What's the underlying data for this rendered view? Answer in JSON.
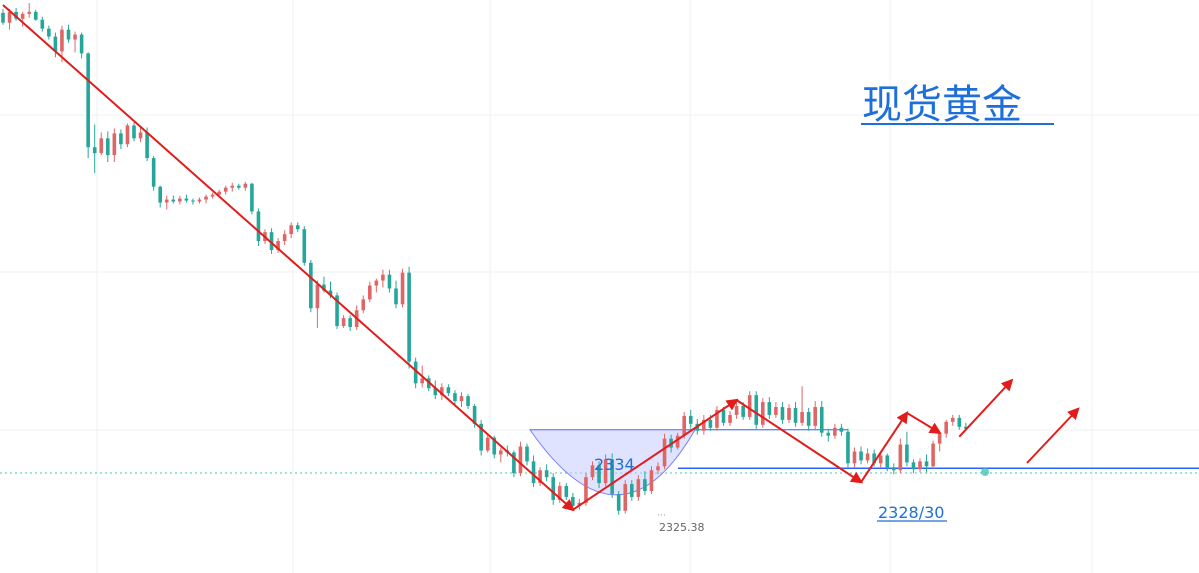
{
  "title": "现货黄金",
  "colors": {
    "up": "#e06666",
    "down": "#26a69a",
    "trend_arrow": "#e31b1b",
    "level_line": "#2962ff",
    "title": "#1e6fd9",
    "bowl_fill": "#c7ccff",
    "bowl_stroke": "#7b7ff0",
    "grid": "#eef0f3",
    "dotted_price": "#45c4b0"
  },
  "chart_data": {
    "type": "candlestick",
    "title": "现货黄金",
    "ylim": [
      2319.5,
      2377.5
    ],
    "grid": true,
    "annotations": {
      "level_2334": "2334",
      "level_2328_30": "2328/30",
      "low_2325_38": "2325.38"
    },
    "levels": [
      {
        "label": "2334",
        "value": 2334.0
      },
      {
        "label": "2328/30",
        "value": 2330.1
      }
    ],
    "low_marker": {
      "label": "2325.38",
      "value": 2325.38
    },
    "arrows": [
      {
        "from": [
          0,
          2377
        ],
        "to": [
          87,
          2325.9
        ]
      },
      {
        "from": [
          87,
          2325.9
        ],
        "to": [
          112,
          2337.0
        ]
      },
      {
        "from": [
          112,
          2337.0
        ],
        "to": [
          131,
          2328.7
        ]
      },
      {
        "from": [
          131,
          2328.7
        ],
        "to": [
          138,
          2335.7
        ]
      },
      {
        "from": [
          138,
          2335.7
        ],
        "to": [
          143,
          2333.7
        ]
      },
      {
        "from": [
          146,
          2333.3
        ],
        "to": [
          154,
          2339.0
        ]
      }
    ],
    "ohlc": [
      [
        2376.2,
        2376.6,
        2375.0,
        2375.2
      ],
      [
        2375.2,
        2376.6,
        2374.5,
        2376.3
      ],
      [
        2376.3,
        2376.7,
        2375.4,
        2375.6
      ],
      [
        2375.6,
        2376.3,
        2374.8,
        2376.1
      ],
      [
        2376.1,
        2377.2,
        2375.7,
        2376.3
      ],
      [
        2376.3,
        2376.5,
        2375.4,
        2375.5
      ],
      [
        2375.5,
        2375.8,
        2374.3,
        2374.6
      ],
      [
        2374.6,
        2374.9,
        2373.5,
        2373.8
      ],
      [
        2373.8,
        2374.2,
        2371.7,
        2372.3
      ],
      [
        2372.3,
        2374.9,
        2371.2,
        2374.5
      ],
      [
        2374.5,
        2375.0,
        2373.2,
        2373.5
      ],
      [
        2373.5,
        2374.3,
        2372.2,
        2374.0
      ],
      [
        2374.0,
        2374.2,
        2371.6,
        2372.1
      ],
      [
        2372.1,
        2372.2,
        2361.5,
        2362.6
      ],
      [
        2362.6,
        2364.9,
        2360.0,
        2362.0
      ],
      [
        2362.0,
        2364.1,
        2361.8,
        2363.5
      ],
      [
        2363.5,
        2364.2,
        2361.1,
        2361.8
      ],
      [
        2361.8,
        2364.5,
        2361.1,
        2364.0
      ],
      [
        2364.0,
        2364.4,
        2362.4,
        2362.9
      ],
      [
        2362.9,
        2365.0,
        2362.6,
        2364.8
      ],
      [
        2364.8,
        2365.1,
        2363.2,
        2363.5
      ],
      [
        2363.5,
        2364.7,
        2363.1,
        2364.1
      ],
      [
        2364.1,
        2364.6,
        2361.2,
        2361.5
      ],
      [
        2361.5,
        2361.7,
        2358.2,
        2358.6
      ],
      [
        2358.6,
        2358.7,
        2356.5,
        2357.0
      ],
      [
        2357.0,
        2357.7,
        2356.3,
        2357.3
      ],
      [
        2357.3,
        2357.7,
        2356.9,
        2357.1
      ],
      [
        2357.1,
        2357.7,
        2356.8,
        2357.4
      ],
      [
        2357.4,
        2357.8,
        2357.0,
        2357.2
      ],
      [
        2357.2,
        2357.4,
        2356.8,
        2357.1
      ],
      [
        2357.1,
        2357.5,
        2356.9,
        2357.3
      ],
      [
        2357.3,
        2357.8,
        2356.9,
        2357.6
      ],
      [
        2357.6,
        2358.0,
        2357.4,
        2357.8
      ],
      [
        2357.8,
        2358.3,
        2357.6,
        2358.1
      ],
      [
        2358.1,
        2358.7,
        2357.8,
        2358.5
      ],
      [
        2358.5,
        2359.0,
        2358.1,
        2358.7
      ],
      [
        2358.7,
        2358.9,
        2358.3,
        2358.5
      ],
      [
        2358.5,
        2359.1,
        2358.2,
        2358.9
      ],
      [
        2358.9,
        2359.0,
        2355.8,
        2356.1
      ],
      [
        2356.1,
        2356.4,
        2352.6,
        2353.1
      ],
      [
        2353.1,
        2354.3,
        2352.8,
        2354.0
      ],
      [
        2354.0,
        2354.4,
        2351.8,
        2352.2
      ],
      [
        2352.2,
        2353.4,
        2351.9,
        2353.1
      ],
      [
        2353.1,
        2354.2,
        2352.7,
        2353.8
      ],
      [
        2353.8,
        2355.0,
        2353.4,
        2354.7
      ],
      [
        2354.7,
        2355.0,
        2354.0,
        2354.3
      ],
      [
        2354.3,
        2354.6,
        2350.6,
        2350.9
      ],
      [
        2350.9,
        2351.2,
        2345.9,
        2346.3
      ],
      [
        2346.3,
        2349.1,
        2344.3,
        2348.7
      ],
      [
        2348.7,
        2349.5,
        2347.9,
        2348.1
      ],
      [
        2348.1,
        2349.0,
        2347.3,
        2347.6
      ],
      [
        2347.6,
        2347.9,
        2344.2,
        2344.5
      ],
      [
        2344.5,
        2345.6,
        2344.3,
        2345.3
      ],
      [
        2345.3,
        2345.6,
        2344.0,
        2344.4
      ],
      [
        2344.4,
        2346.6,
        2344.1,
        2346.1
      ],
      [
        2346.1,
        2347.6,
        2345.8,
        2347.2
      ],
      [
        2347.2,
        2349.0,
        2346.9,
        2348.6
      ],
      [
        2348.6,
        2349.3,
        2347.9,
        2349.1
      ],
      [
        2349.1,
        2350.2,
        2348.4,
        2349.7
      ],
      [
        2349.7,
        2350.2,
        2347.9,
        2348.3
      ],
      [
        2348.3,
        2349.1,
        2346.3,
        2346.7
      ],
      [
        2346.7,
        2350.3,
        2346.4,
        2349.9
      ],
      [
        2349.9,
        2350.5,
        2340.2,
        2340.9
      ],
      [
        2340.9,
        2341.3,
        2338.2,
        2338.7
      ],
      [
        2338.7,
        2340.5,
        2338.3,
        2339.2
      ],
      [
        2339.2,
        2339.5,
        2337.9,
        2338.2
      ],
      [
        2338.2,
        2339.0,
        2337.1,
        2337.5
      ],
      [
        2337.5,
        2338.7,
        2337.0,
        2338.3
      ],
      [
        2338.3,
        2338.6,
        2337.4,
        2337.7
      ],
      [
        2337.7,
        2338.0,
        2336.5,
        2336.9
      ],
      [
        2336.9,
        2337.8,
        2336.3,
        2337.4
      ],
      [
        2337.4,
        2337.6,
        2336.1,
        2336.4
      ],
      [
        2336.4,
        2336.6,
        2334.2,
        2334.6
      ],
      [
        2334.6,
        2335.0,
        2331.4,
        2331.9
      ],
      [
        2331.9,
        2333.5,
        2331.7,
        2333.2
      ],
      [
        2333.2,
        2333.4,
        2331.1,
        2331.5
      ],
      [
        2331.5,
        2332.2,
        2330.7,
        2331.9
      ],
      [
        2331.9,
        2332.4,
        2331.3,
        2331.7
      ],
      [
        2331.7,
        2331.9,
        2329.2,
        2329.6
      ],
      [
        2329.6,
        2332.8,
        2329.3,
        2332.3
      ],
      [
        2332.3,
        2332.6,
        2330.4,
        2330.8
      ],
      [
        2330.8,
        2331.4,
        2328.2,
        2328.6
      ],
      [
        2328.6,
        2330.2,
        2328.3,
        2329.9
      ],
      [
        2329.9,
        2330.5,
        2328.8,
        2329.2
      ],
      [
        2329.2,
        2329.6,
        2326.4,
        2326.9
      ],
      [
        2326.9,
        2328.7,
        2326.6,
        2328.3
      ],
      [
        2328.3,
        2328.6,
        2326.9,
        2327.2
      ],
      [
        2327.2,
        2327.6,
        2325.9,
        2326.3
      ],
      [
        2326.3,
        2327.0,
        2325.9,
        2326.6
      ],
      [
        2326.6,
        2329.6,
        2326.3,
        2329.2
      ],
      [
        2329.2,
        2330.8,
        2328.9,
        2330.4
      ],
      [
        2330.4,
        2330.8,
        2328.1,
        2328.6
      ],
      [
        2328.6,
        2331.5,
        2328.3,
        2331.0
      ],
      [
        2331.0,
        2331.6,
        2327.1,
        2327.5
      ],
      [
        2327.5,
        2327.8,
        2325.4,
        2325.8
      ],
      [
        2325.8,
        2328.9,
        2325.5,
        2328.5
      ],
      [
        2328.5,
        2328.9,
        2326.8,
        2327.2
      ],
      [
        2327.2,
        2329.4,
        2326.8,
        2329.0
      ],
      [
        2329.0,
        2329.8,
        2327.4,
        2327.8
      ],
      [
        2327.8,
        2330.3,
        2327.5,
        2329.9
      ],
      [
        2329.9,
        2330.7,
        2329.5,
        2330.3
      ],
      [
        2330.3,
        2333.6,
        2330.0,
        2333.1
      ],
      [
        2333.1,
        2333.5,
        2331.7,
        2332.2
      ],
      [
        2332.2,
        2333.7,
        2332.0,
        2333.4
      ],
      [
        2333.4,
        2335.8,
        2333.1,
        2335.4
      ],
      [
        2335.4,
        2336.0,
        2334.1,
        2334.6
      ],
      [
        2334.6,
        2335.1,
        2333.5,
        2333.9
      ],
      [
        2333.9,
        2335.5,
        2333.5,
        2335.0
      ],
      [
        2335.0,
        2335.5,
        2333.9,
        2334.2
      ],
      [
        2334.2,
        2336.4,
        2333.9,
        2336.0
      ],
      [
        2336.0,
        2336.3,
        2334.4,
        2334.7
      ],
      [
        2334.7,
        2335.9,
        2334.4,
        2335.5
      ],
      [
        2335.5,
        2336.9,
        2335.1,
        2336.4
      ],
      [
        2336.4,
        2336.8,
        2335.0,
        2335.3
      ],
      [
        2335.3,
        2337.9,
        2335.0,
        2337.5
      ],
      [
        2337.5,
        2337.9,
        2334.1,
        2334.5
      ],
      [
        2334.5,
        2337.2,
        2334.2,
        2336.8
      ],
      [
        2336.8,
        2337.3,
        2335.1,
        2335.5
      ],
      [
        2335.5,
        2336.8,
        2335.2,
        2336.3
      ],
      [
        2336.3,
        2336.8,
        2334.6,
        2335.0
      ],
      [
        2335.0,
        2336.6,
        2334.7,
        2336.2
      ],
      [
        2336.2,
        2336.8,
        2334.3,
        2334.7
      ],
      [
        2334.7,
        2338.4,
        2334.4,
        2335.8
      ],
      [
        2335.8,
        2336.2,
        2333.9,
        2334.4
      ],
      [
        2334.4,
        2336.9,
        2334.0,
        2336.3
      ],
      [
        2336.3,
        2336.9,
        2333.3,
        2333.7
      ],
      [
        2333.7,
        2334.1,
        2332.8,
        2333.4
      ],
      [
        2333.4,
        2334.6,
        2333.1,
        2334.2
      ],
      [
        2334.2,
        2334.6,
        2333.4,
        2333.8
      ],
      [
        2333.8,
        2334.1,
        2330.2,
        2330.6
      ],
      [
        2330.6,
        2332.2,
        2330.2,
        2331.8
      ],
      [
        2331.8,
        2332.3,
        2330.5,
        2330.9
      ],
      [
        2330.9,
        2332.1,
        2330.6,
        2331.6
      ],
      [
        2331.6,
        2332.0,
        2330.3,
        2330.6
      ],
      [
        2330.6,
        2331.8,
        2330.2,
        2331.4
      ],
      [
        2331.4,
        2331.6,
        2329.8,
        2330.2
      ],
      [
        2330.2,
        2330.6,
        2329.5,
        2329.9
      ],
      [
        2329.9,
        2333.1,
        2329.6,
        2332.5
      ],
      [
        2332.5,
        2333.8,
        2330.3,
        2330.7
      ],
      [
        2330.7,
        2331.0,
        2329.6,
        2330.0
      ],
      [
        2330.0,
        2331.1,
        2329.7,
        2330.8
      ],
      [
        2330.8,
        2331.5,
        2329.7,
        2330.3
      ],
      [
        2330.3,
        2332.9,
        2330.0,
        2332.6
      ],
      [
        2332.6,
        2333.8,
        2331.8,
        2333.6
      ],
      [
        2333.6,
        2335.0,
        2333.2,
        2334.8
      ],
      [
        2334.8,
        2335.5,
        2334.4,
        2335.2
      ],
      [
        2335.2,
        2335.5,
        2334.0,
        2334.3
      ],
      [
        2334.3,
        2334.7,
        2333.9,
        2334.1
      ]
    ]
  }
}
